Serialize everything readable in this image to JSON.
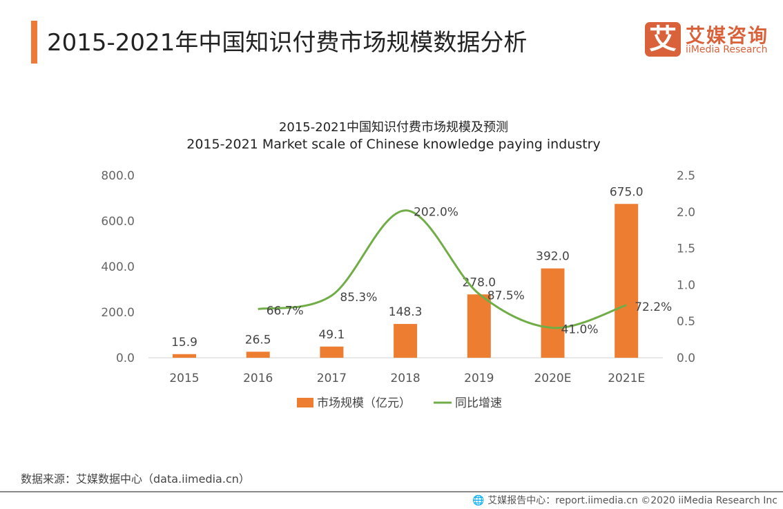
{
  "header": {
    "title": "2015-2021年中国知识付费市场规模数据分析"
  },
  "logo": {
    "mark": "艾",
    "cn": "艾媒咨询",
    "en": "iiMedia Research"
  },
  "source": "数据来源：艾媒数据中心（data.iimedia.cn）",
  "footer": "🌐 艾媒报告中心：report.iimedia.cn  ©2020  iiMedia Research  Inc",
  "colors": {
    "bar": "#ed7d31",
    "line": "#70ad47",
    "accent": "#ee7a3a",
    "brand": "#d9623b"
  },
  "chart_data": {
    "type": "bar+line",
    "title": "2015-2021中国知识付费市场规模及预测",
    "subtitle": "2015-2021 Market scale of Chinese knowledge paying industry",
    "categories": [
      "2015",
      "2016",
      "2017",
      "2018",
      "2019",
      "2020E",
      "2021E"
    ],
    "y_left": {
      "range": [
        0,
        800
      ],
      "ticks": [
        "0.0",
        "200.0",
        "400.0",
        "600.0",
        "800.0"
      ]
    },
    "y_right": {
      "range": [
        0,
        2.5
      ],
      "ticks": [
        "0.0",
        "0.5",
        "1.0",
        "1.5",
        "2.0",
        "2.5"
      ]
    },
    "series": [
      {
        "name": "市场规模（亿元）",
        "type": "bar",
        "axis": "left",
        "values": [
          15.9,
          26.5,
          49.1,
          148.3,
          278.0,
          392.0,
          675.0
        ],
        "labels": [
          "15.9",
          "26.5",
          "49.1",
          "148.3",
          "278.0",
          "392.0",
          "675.0"
        ]
      },
      {
        "name": "同比增速",
        "type": "line",
        "axis": "right",
        "values": [
          null,
          0.667,
          0.853,
          2.02,
          0.875,
          0.41,
          0.722
        ],
        "labels": [
          "",
          "66.7%",
          "85.3%",
          "202.0%",
          "87.5%",
          "41.0%",
          "72.2%"
        ]
      }
    ],
    "legend": "bottom",
    "grid": false
  }
}
